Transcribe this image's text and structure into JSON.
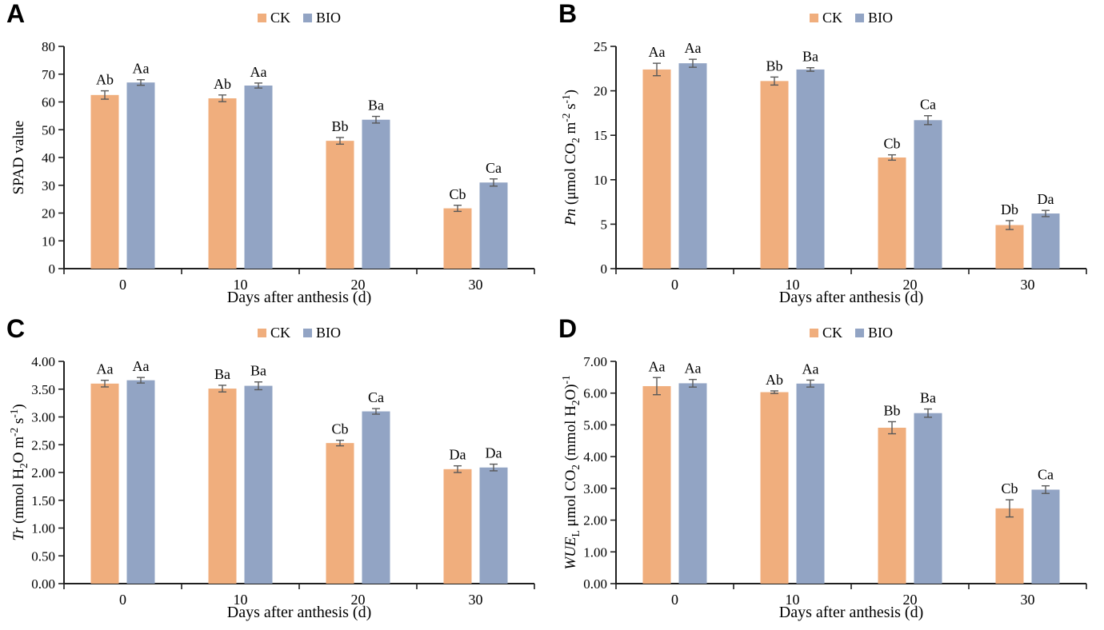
{
  "colors": {
    "ck": "#F0AE7D",
    "bio": "#92A4C4",
    "error_bar": "#595959",
    "axis": "#1f1f1f"
  },
  "chart_data": [
    {
      "panel": "A",
      "type": "bar",
      "xlabel": "Days after anthesis (d)",
      "ylabel_segments": [
        {
          "text": "SPAD value",
          "style": "normal"
        }
      ],
      "categories": [
        "0",
        "10",
        "20",
        "30"
      ],
      "ylim": [
        0,
        80
      ],
      "ytick_step": 10,
      "ytick_decimals": 0,
      "grid": false,
      "legend_position": "top-center",
      "series": [
        {
          "name": "CK",
          "color": "#F0AE7D",
          "values": [
            62.5,
            61.3,
            46.0,
            21.7
          ],
          "errors": [
            1.5,
            1.2,
            1.2,
            1.1
          ],
          "labels": [
            "Ab",
            "Ab",
            "Bb",
            "Cb"
          ]
        },
        {
          "name": "BIO",
          "color": "#92A4C4",
          "values": [
            67.0,
            65.9,
            53.6,
            31.0
          ],
          "errors": [
            1.0,
            0.9,
            1.2,
            1.3
          ],
          "labels": [
            "Aa",
            "Aa",
            "Ba",
            "Ca"
          ]
        }
      ]
    },
    {
      "panel": "B",
      "type": "bar",
      "xlabel": "Days after anthesis (d)",
      "ylabel_segments": [
        {
          "text": "Pn",
          "style": "italic"
        },
        {
          "text": " (μmol CO",
          "style": "normal"
        },
        {
          "text": "2",
          "style": "sub"
        },
        {
          "text": " m",
          "style": "normal"
        },
        {
          "text": "-2",
          "style": "sup"
        },
        {
          "text": " s",
          "style": "normal"
        },
        {
          "text": "-1",
          "style": "sup"
        },
        {
          "text": ")",
          "style": "normal"
        }
      ],
      "categories": [
        "0",
        "10",
        "20",
        "30"
      ],
      "ylim": [
        0,
        25
      ],
      "ytick_step": 5,
      "ytick_decimals": 0,
      "grid": false,
      "legend_position": "top-center",
      "series": [
        {
          "name": "CK",
          "color": "#F0AE7D",
          "values": [
            22.4,
            21.1,
            12.5,
            4.9
          ],
          "errors": [
            0.7,
            0.45,
            0.3,
            0.5
          ],
          "labels": [
            "Aa",
            "Bb",
            "Cb",
            "Db"
          ]
        },
        {
          "name": "BIO",
          "color": "#92A4C4",
          "values": [
            23.1,
            22.4,
            16.7,
            6.2
          ],
          "errors": [
            0.45,
            0.2,
            0.5,
            0.35
          ],
          "labels": [
            "Aa",
            "Ba",
            "Ca",
            "Da"
          ]
        }
      ]
    },
    {
      "panel": "C",
      "type": "bar",
      "xlabel": "Days after anthesis (d)",
      "ylabel_segments": [
        {
          "text": "Tr",
          "style": "italic"
        },
        {
          "text": " (mmol H",
          "style": "normal"
        },
        {
          "text": "2",
          "style": "sub"
        },
        {
          "text": "O m",
          "style": "normal"
        },
        {
          "text": "-2",
          "style": "sup"
        },
        {
          "text": " s",
          "style": "normal"
        },
        {
          "text": "-1",
          "style": "sup"
        },
        {
          "text": ")",
          "style": "normal"
        }
      ],
      "categories": [
        "0",
        "10",
        "20",
        "30"
      ],
      "ylim": [
        0,
        4
      ],
      "ytick_step": 0.5,
      "ytick_decimals": 2,
      "grid": false,
      "legend_position": "top-center",
      "series": [
        {
          "name": "CK",
          "color": "#F0AE7D",
          "values": [
            3.6,
            3.51,
            2.53,
            2.06
          ],
          "errors": [
            0.06,
            0.06,
            0.05,
            0.06
          ],
          "labels": [
            "Aa",
            "Ba",
            "Cb",
            "Da"
          ]
        },
        {
          "name": "BIO",
          "color": "#92A4C4",
          "values": [
            3.66,
            3.56,
            3.1,
            2.09
          ],
          "errors": [
            0.05,
            0.07,
            0.05,
            0.06
          ],
          "labels": [
            "Aa",
            "Ba",
            "Ca",
            "Da"
          ]
        }
      ]
    },
    {
      "panel": "D",
      "type": "bar",
      "xlabel": "Days after anthesis (d)",
      "ylabel_segments": [
        {
          "text": "WUE",
          "style": "italic"
        },
        {
          "text": "L",
          "style": "sub"
        },
        {
          "text": " μmol CO",
          "style": "normal"
        },
        {
          "text": "2",
          "style": "sub"
        },
        {
          "text": " (mmol H",
          "style": "normal"
        },
        {
          "text": "2",
          "style": "sub"
        },
        {
          "text": "O)",
          "style": "normal"
        },
        {
          "text": "-1",
          "style": "sup"
        }
      ],
      "categories": [
        "0",
        "10",
        "20",
        "30"
      ],
      "ylim": [
        0,
        7
      ],
      "ytick_step": 1,
      "ytick_decimals": 2,
      "grid": false,
      "legend_position": "top-center",
      "series": [
        {
          "name": "CK",
          "color": "#F0AE7D",
          "values": [
            6.22,
            6.03,
            4.91,
            2.37
          ],
          "errors": [
            0.27,
            0.04,
            0.19,
            0.27
          ],
          "labels": [
            "Aa",
            "Ab",
            "Bb",
            "Cb"
          ]
        },
        {
          "name": "BIO",
          "color": "#92A4C4",
          "values": [
            6.31,
            6.3,
            5.37,
            2.96
          ],
          "errors": [
            0.12,
            0.11,
            0.13,
            0.12
          ],
          "labels": [
            "Aa",
            "Aa",
            "Ba",
            "Ca"
          ]
        }
      ]
    }
  ]
}
